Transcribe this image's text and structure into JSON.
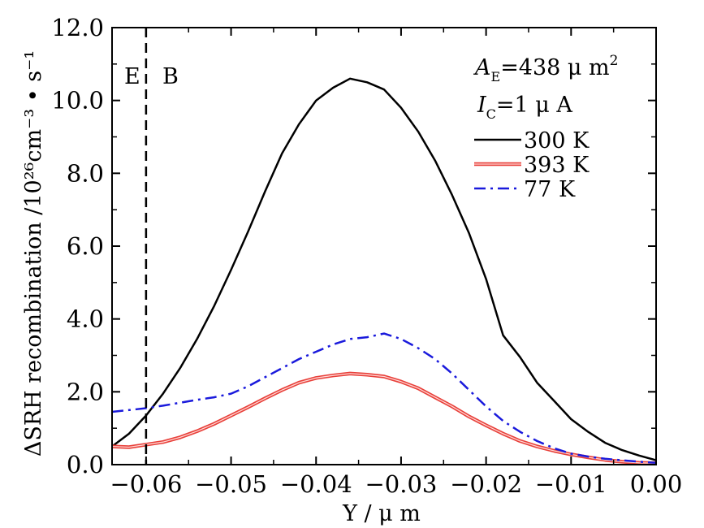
{
  "chart_data": {
    "type": "line",
    "xlabel": "Y / μ m",
    "ylabel": "ΔSRH  recombination /10²⁶cm⁻³ • s⁻¹",
    "xlim": [
      -0.064,
      0.0
    ],
    "ylim": [
      0.0,
      12.0
    ],
    "x_ticks": [
      -0.06,
      -0.05,
      -0.04,
      -0.03,
      -0.02,
      -0.01,
      0.0
    ],
    "x_tick_labels": [
      "−0.06",
      "−0.05",
      "−0.04",
      "−0.03",
      "−0.02",
      "−0.01",
      "0.00"
    ],
    "y_ticks": [
      0.0,
      2.0,
      4.0,
      6.0,
      8.0,
      10.0,
      12.0
    ],
    "y_tick_labels": [
      "0.0",
      "2.0",
      "4.0",
      "6.0",
      "8.0",
      "10.0",
      "12.0"
    ],
    "legend_position": "top-right",
    "annotations": {
      "emitter": "E",
      "base": "B",
      "boundary_x": -0.06,
      "area_prefix": "A",
      "area_sub": "E",
      "area_value": "=438  μ m",
      "area_sup": "2",
      "current_prefix": "I",
      "current_sub": "C",
      "current_value": "=1  μ A"
    },
    "series": [
      {
        "name": "300  K",
        "color": "#000000",
        "style": "solid",
        "x": [
          -0.064,
          -0.062,
          -0.06,
          -0.058,
          -0.056,
          -0.054,
          -0.052,
          -0.05,
          -0.048,
          -0.046,
          -0.044,
          -0.042,
          -0.04,
          -0.038,
          -0.036,
          -0.034,
          -0.033,
          -0.032,
          -0.03,
          -0.028,
          -0.026,
          -0.024,
          -0.022,
          -0.02,
          -0.018,
          -0.016,
          -0.014,
          -0.012,
          -0.01,
          -0.008,
          -0.006,
          -0.004,
          -0.002,
          0.0
        ],
        "values": [
          0.5,
          0.85,
          1.35,
          1.95,
          2.65,
          3.45,
          4.35,
          5.35,
          6.4,
          7.5,
          8.55,
          9.35,
          10.0,
          10.35,
          10.6,
          10.5,
          10.4,
          10.3,
          9.8,
          9.15,
          8.35,
          7.4,
          6.35,
          5.1,
          3.55,
          2.95,
          2.25,
          1.75,
          1.25,
          0.9,
          0.6,
          0.4,
          0.25,
          0.12
        ]
      },
      {
        "name": "393  K",
        "color": "#e8403a",
        "style": "double",
        "x": [
          -0.064,
          -0.062,
          -0.06,
          -0.058,
          -0.056,
          -0.054,
          -0.052,
          -0.05,
          -0.048,
          -0.046,
          -0.044,
          -0.042,
          -0.04,
          -0.038,
          -0.036,
          -0.034,
          -0.032,
          -0.03,
          -0.028,
          -0.026,
          -0.024,
          -0.022,
          -0.02,
          -0.018,
          -0.016,
          -0.014,
          -0.012,
          -0.01,
          -0.008,
          -0.006,
          -0.004,
          -0.002,
          0.0
        ],
        "values": [
          0.5,
          0.48,
          0.55,
          0.62,
          0.75,
          0.92,
          1.12,
          1.35,
          1.58,
          1.82,
          2.05,
          2.25,
          2.38,
          2.45,
          2.5,
          2.47,
          2.42,
          2.28,
          2.1,
          1.85,
          1.6,
          1.32,
          1.08,
          0.85,
          0.65,
          0.5,
          0.38,
          0.28,
          0.2,
          0.13,
          0.08,
          0.05,
          0.04
        ]
      },
      {
        "name": "77  K",
        "color": "#1a1adc",
        "style": "dashdot",
        "x": [
          -0.064,
          -0.062,
          -0.06,
          -0.058,
          -0.056,
          -0.054,
          -0.052,
          -0.05,
          -0.048,
          -0.046,
          -0.044,
          -0.042,
          -0.04,
          -0.038,
          -0.036,
          -0.034,
          -0.032,
          -0.03,
          -0.028,
          -0.026,
          -0.024,
          -0.022,
          -0.02,
          -0.018,
          -0.016,
          -0.014,
          -0.012,
          -0.01,
          -0.008,
          -0.006,
          -0.004,
          -0.002,
          0.0
        ],
        "values": [
          1.45,
          1.5,
          1.55,
          1.62,
          1.7,
          1.78,
          1.85,
          1.95,
          2.15,
          2.4,
          2.65,
          2.9,
          3.1,
          3.3,
          3.45,
          3.5,
          3.6,
          3.45,
          3.2,
          2.9,
          2.5,
          2.05,
          1.6,
          1.2,
          0.9,
          0.65,
          0.45,
          0.3,
          0.22,
          0.16,
          0.12,
          0.08,
          0.05
        ]
      }
    ]
  }
}
